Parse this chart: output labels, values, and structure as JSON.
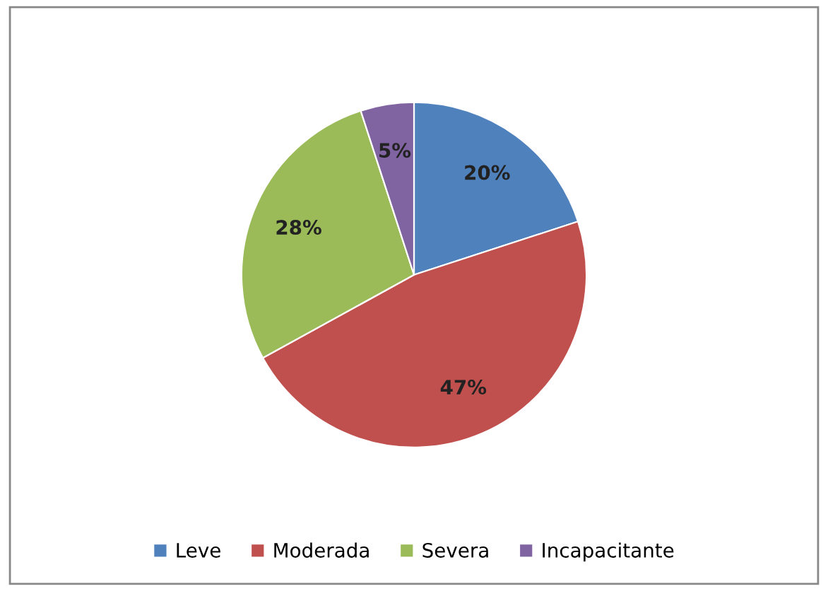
{
  "chart_data": {
    "type": "pie",
    "categories": [
      "Leve",
      "Moderada",
      "Severa",
      "Incapacitante"
    ],
    "values": [
      20,
      47,
      28,
      5
    ],
    "value_labels": [
      "20%",
      "47%",
      "28%",
      "5%"
    ],
    "colors": [
      "#4f81bd",
      "#c0504d",
      "#9bbb59",
      "#8064a2"
    ],
    "legend": "bottom"
  }
}
